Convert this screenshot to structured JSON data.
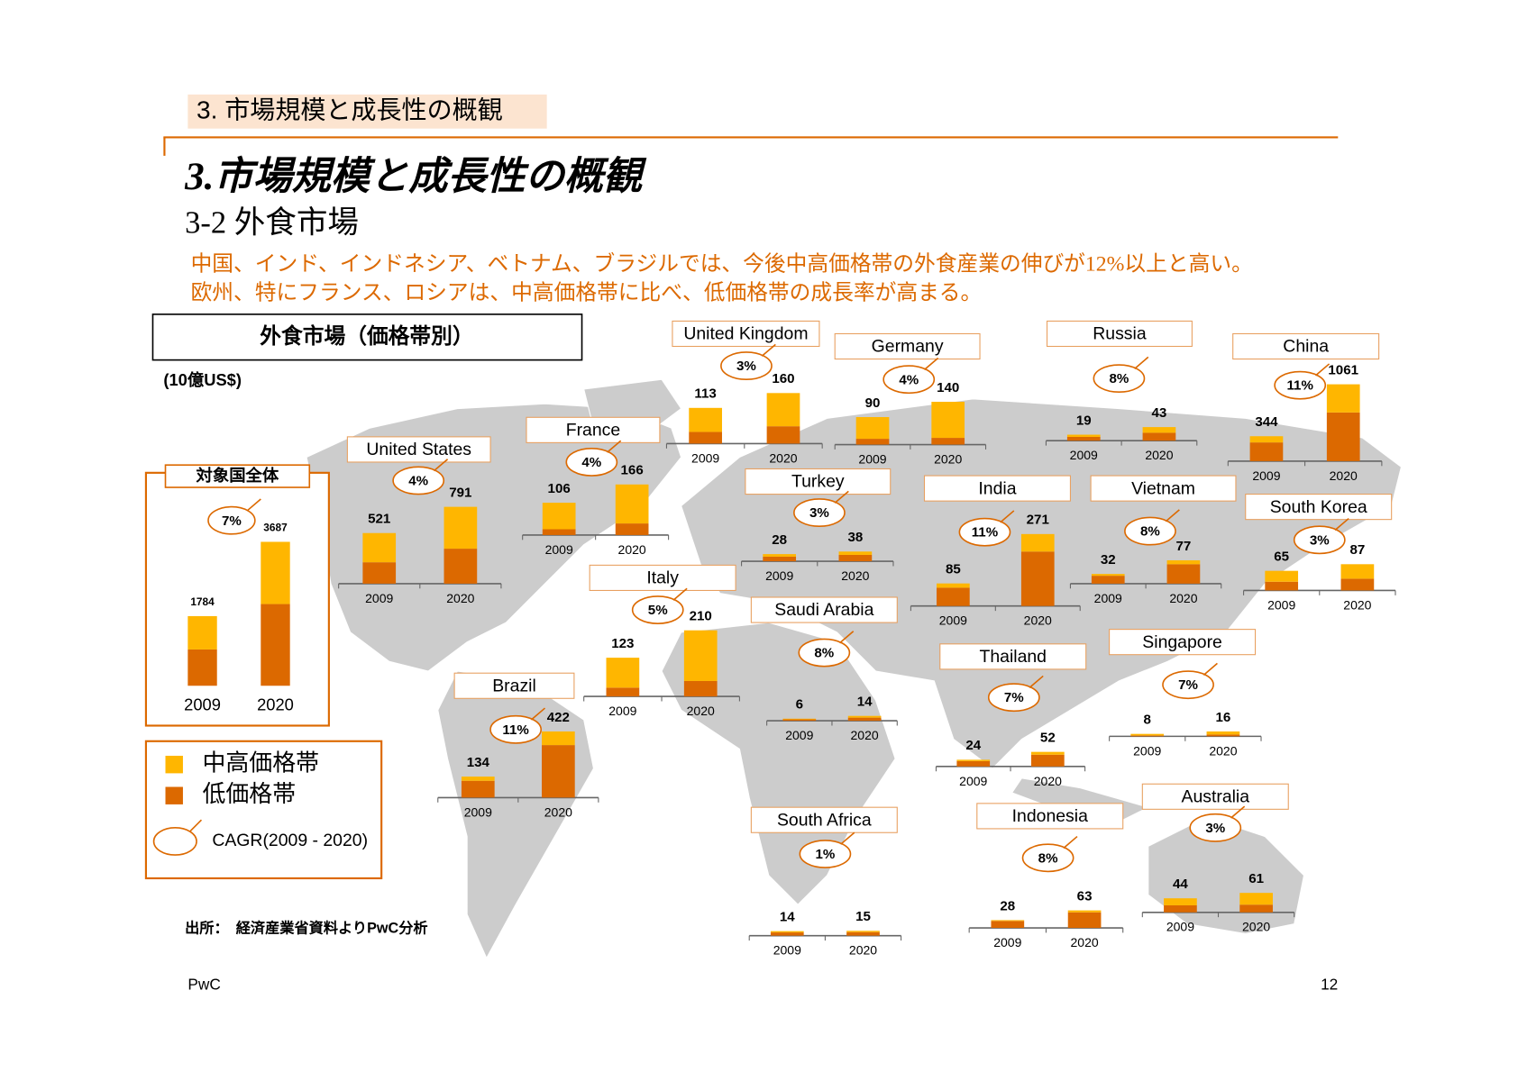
{
  "header": {
    "tab": "3. 市場規模と成長性の概観",
    "title": "3.市場規模と成長性の概観",
    "subtitle": "3-2 外食市場",
    "lines": [
      "中国、インド、インドネシア、ベトナム、ブラジルでは、今後中高価格帯の外食産業の伸びが12%以上と高い。",
      "欧州、特にフランス、ロシアは、中高価格帯に比べ、低価格帯の成長率が高まる。"
    ]
  },
  "chart_data": {
    "type": "bar",
    "title": "外食市場（価格帯別）",
    "unit": "(10億US$)",
    "years": [
      "2009",
      "2020"
    ],
    "legend": {
      "series": [
        {
          "name": "中高価格帯",
          "color": "#ffb600"
        },
        {
          "name": "低価格帯",
          "color": "#dc6900"
        }
      ],
      "cagr_label": "CAGR(2009 - 2020)"
    },
    "overall": {
      "name": "対象国全体",
      "cagr": "7%",
      "totals": [
        1784,
        3687
      ],
      "low": [
        930,
        2093
      ],
      "mid_high": [
        854,
        1594
      ]
    },
    "countries": [
      {
        "name": "United States",
        "cagr": "4%",
        "totals": [
          521,
          791
        ],
        "low": [
          220,
          360
        ],
        "mid_high": [
          301,
          431
        ]
      },
      {
        "name": "France",
        "cagr": "4%",
        "totals": [
          106,
          166
        ],
        "low": [
          19,
          38
        ],
        "mid_high": [
          87,
          128
        ]
      },
      {
        "name": "United Kingdom",
        "cagr": "3%",
        "totals": [
          113,
          160
        ],
        "low": [
          37,
          55
        ],
        "mid_high": [
          76,
          105
        ]
      },
      {
        "name": "Germany",
        "cagr": "4%",
        "totals": [
          90,
          140
        ],
        "low": [
          19,
          22
        ],
        "mid_high": [
          71,
          118
        ]
      },
      {
        "name": "Russia",
        "cagr": "8%",
        "totals": [
          19,
          43
        ],
        "low": [
          12,
          25
        ],
        "mid_high": [
          7,
          18
        ]
      },
      {
        "name": "China",
        "cagr": "11%",
        "totals": [
          344,
          1061
        ],
        "low": [
          258,
          672
        ],
        "mid_high": [
          86,
          389
        ]
      },
      {
        "name": "Turkey",
        "cagr": "3%",
        "totals": [
          28,
          38
        ],
        "low": [
          18,
          25
        ],
        "mid_high": [
          10,
          13
        ]
      },
      {
        "name": "India",
        "cagr": "11%",
        "totals": [
          85,
          271
        ],
        "low": [
          69,
          205
        ],
        "mid_high": [
          16,
          66
        ]
      },
      {
        "name": "Vietnam",
        "cagr": "8%",
        "totals": [
          32,
          77
        ],
        "low": [
          26,
          64
        ],
        "mid_high": [
          6,
          13
        ]
      },
      {
        "name": "South Korea",
        "cagr": "3%",
        "totals": [
          65,
          87
        ],
        "low": [
          29,
          39
        ],
        "mid_high": [
          36,
          48
        ]
      },
      {
        "name": "Italy",
        "cagr": "5%",
        "totals": [
          123,
          210
        ],
        "low": [
          28,
          49
        ],
        "mid_high": [
          95,
          161
        ]
      },
      {
        "name": "Saudi Arabia",
        "cagr": "8%",
        "totals": [
          6,
          14
        ],
        "low": [
          4,
          9
        ],
        "mid_high": [
          2,
          5
        ]
      },
      {
        "name": "Thailand",
        "cagr": "7%",
        "totals": [
          24,
          52
        ],
        "low": [
          19,
          42
        ],
        "mid_high": [
          5,
          10
        ]
      },
      {
        "name": "Singapore",
        "cagr": "7%",
        "totals": [
          8,
          16
        ],
        "low": [
          3,
          6
        ],
        "mid_high": [
          5,
          10
        ]
      },
      {
        "name": "Brazil",
        "cagr": "11%",
        "totals": [
          134,
          422
        ],
        "low": [
          107,
          335
        ],
        "mid_high": [
          27,
          87
        ]
      },
      {
        "name": "South Africa",
        "cagr": "1%",
        "totals": [
          14,
          15
        ],
        "low": [
          10,
          11
        ],
        "mid_high": [
          4,
          4
        ]
      },
      {
        "name": "Indonesia",
        "cagr": "8%",
        "totals": [
          28,
          63
        ],
        "low": [
          25,
          56
        ],
        "mid_high": [
          3,
          7
        ]
      },
      {
        "name": "Australia",
        "cagr": "3%",
        "totals": [
          44,
          61
        ],
        "low": [
          22,
          24
        ],
        "mid_high": [
          22,
          37
        ]
      }
    ]
  },
  "source": "出所：　経済産業省資料よりPwC分析",
  "footer": {
    "brand": "PwC",
    "page": "12"
  }
}
